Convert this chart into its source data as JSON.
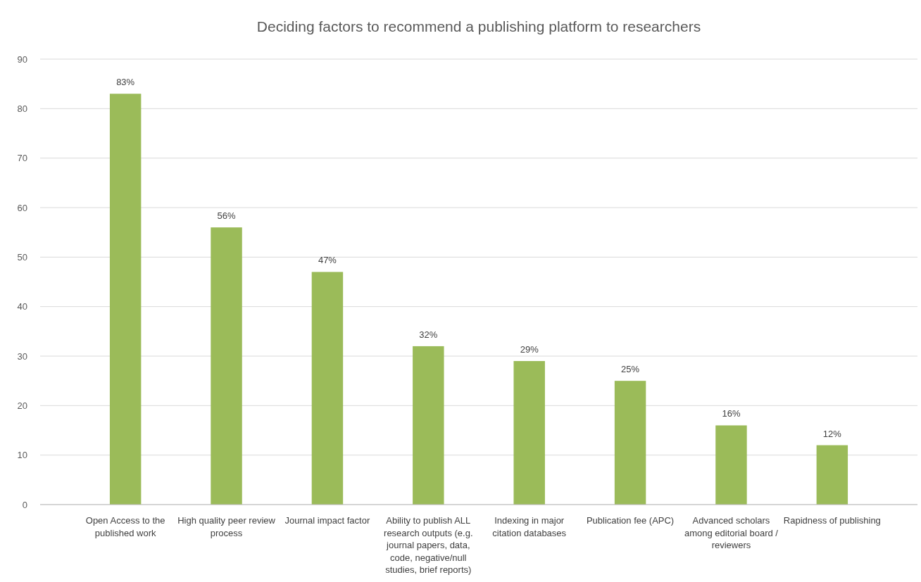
{
  "chart_data": {
    "type": "bar",
    "title": "Deciding factors to recommend a publishing platform to researchers",
    "categories": [
      "Open Access to the published work",
      "High quality peer review process",
      "Journal impact factor",
      "Ability to publish ALL research outputs (e.g. journal papers, data, code, negative/null studies, brief reports)",
      "Indexing in major citation databases",
      "Publication fee (APC)",
      "Advanced scholars among editorial board / reviewers",
      "Rapidness of publishing"
    ],
    "values": [
      83,
      56,
      47,
      32,
      29,
      25,
      16,
      12
    ],
    "value_labels": [
      "83%",
      "56%",
      "47%",
      "32%",
      "29%",
      "25%",
      "16%",
      "12%"
    ],
    "color": "#9bbb59",
    "ylim": [
      0,
      90
    ],
    "yticks": [
      0,
      10,
      20,
      30,
      40,
      50,
      60,
      70,
      80,
      90
    ],
    "grid": "y"
  }
}
